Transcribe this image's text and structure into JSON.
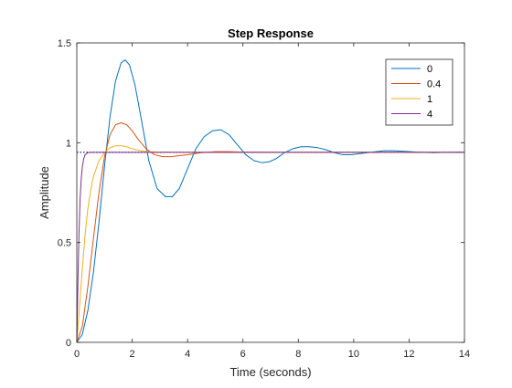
{
  "chart_data": {
    "type": "line",
    "title": "Step Response",
    "xlabel": "Time (seconds)",
    "ylabel": "Amplitude",
    "xlim": [
      0,
      14
    ],
    "ylim": [
      0,
      1.5
    ],
    "xticks": [
      0,
      2,
      4,
      6,
      8,
      10,
      12,
      14
    ],
    "yticks": [
      0,
      0.5,
      1,
      1.5
    ],
    "xtick_labels": [
      "0",
      "2",
      "4",
      "6",
      "8",
      "10",
      "12",
      "14"
    ],
    "ytick_labels": [
      "0",
      "0.5",
      "1",
      "1.5"
    ],
    "grid": false,
    "legend_position": "top-right",
    "reference_line": {
      "value": 0.952,
      "style": "dotted",
      "color": "#000080"
    },
    "series": [
      {
        "name": "0",
        "color": "#0072BD",
        "x": [
          0,
          0.2,
          0.4,
          0.6,
          0.8,
          1.0,
          1.2,
          1.4,
          1.6,
          1.75,
          1.9,
          2.1,
          2.3,
          2.6,
          2.9,
          3.2,
          3.45,
          3.7,
          4.0,
          4.3,
          4.6,
          4.9,
          5.2,
          5.5,
          5.8,
          6.1,
          6.4,
          6.7,
          6.95,
          7.2,
          7.5,
          7.8,
          8.1,
          8.4,
          8.7,
          9.0,
          9.3,
          9.6,
          9.9,
          10.2,
          10.5,
          10.8,
          11.1,
          11.4,
          11.7,
          12.0,
          12.3,
          12.6,
          12.9,
          13.2,
          13.5,
          13.8,
          14.0
        ],
        "y": [
          0,
          0.04,
          0.16,
          0.35,
          0.6,
          0.88,
          1.13,
          1.31,
          1.4,
          1.415,
          1.39,
          1.29,
          1.14,
          0.91,
          0.77,
          0.73,
          0.73,
          0.77,
          0.87,
          0.97,
          1.03,
          1.06,
          1.065,
          1.04,
          0.99,
          0.94,
          0.91,
          0.9,
          0.905,
          0.92,
          0.95,
          0.97,
          0.98,
          0.98,
          0.975,
          0.965,
          0.95,
          0.94,
          0.94,
          0.945,
          0.95,
          0.955,
          0.96,
          0.96,
          0.958,
          0.956,
          0.953,
          0.951,
          0.95,
          0.951,
          0.952,
          0.953,
          0.952
        ]
      },
      {
        "name": "0.4",
        "color": "#D95319",
        "x": [
          0,
          0.2,
          0.4,
          0.6,
          0.8,
          1.0,
          1.2,
          1.4,
          1.6,
          1.8,
          2.0,
          2.2,
          2.5,
          2.8,
          3.1,
          3.4,
          3.7,
          4.0,
          4.5,
          5.0,
          5.5,
          6.0,
          7.0,
          8.0,
          10.0,
          12.0,
          14.0
        ],
        "y": [
          0,
          0.08,
          0.28,
          0.52,
          0.75,
          0.93,
          1.04,
          1.09,
          1.1,
          1.09,
          1.06,
          1.02,
          0.97,
          0.94,
          0.93,
          0.93,
          0.935,
          0.94,
          0.95,
          0.955,
          0.955,
          0.953,
          0.952,
          0.952,
          0.952,
          0.952,
          0.952
        ]
      },
      {
        "name": "1",
        "color": "#EDB120",
        "x": [
          0,
          0.1,
          0.2,
          0.3,
          0.4,
          0.5,
          0.6,
          0.8,
          1.0,
          1.2,
          1.4,
          1.6,
          1.8,
          2.0,
          2.3,
          2.6,
          3.0,
          3.5,
          4.0,
          5.0,
          6.0,
          8.0,
          10.0,
          12.0,
          14.0
        ],
        "y": [
          0,
          0.18,
          0.37,
          0.54,
          0.67,
          0.76,
          0.83,
          0.91,
          0.95,
          0.975,
          0.985,
          0.985,
          0.98,
          0.97,
          0.96,
          0.955,
          0.953,
          0.952,
          0.952,
          0.952,
          0.952,
          0.952,
          0.952,
          0.952,
          0.952
        ]
      },
      {
        "name": "4",
        "color": "#7E2F8E",
        "x": [
          0,
          0.04,
          0.08,
          0.12,
          0.16,
          0.2,
          0.25,
          0.3,
          0.35,
          0.4,
          0.5,
          0.6,
          0.8,
          1.0,
          2.0,
          4.0,
          8.0,
          14.0
        ],
        "y": [
          0,
          0.3,
          0.55,
          0.72,
          0.82,
          0.88,
          0.92,
          0.94,
          0.945,
          0.95,
          0.952,
          0.952,
          0.952,
          0.952,
          0.952,
          0.952,
          0.952,
          0.952
        ]
      }
    ]
  }
}
